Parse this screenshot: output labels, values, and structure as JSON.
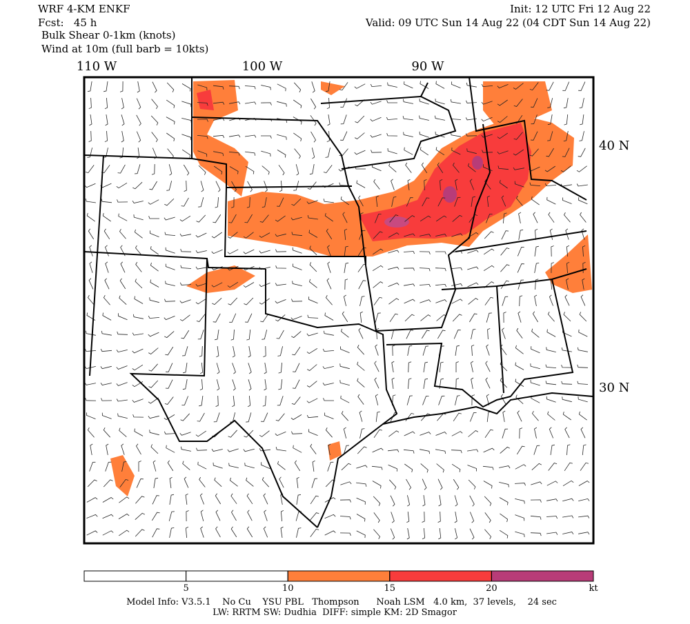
{
  "header": {
    "model": "WRF 4-KM ENKF",
    "forecast": "Fcst:   45 h",
    "field": "Bulk Shear 0-1km (knots)",
    "wind": "Wind at 10m (full barb = 10kts)",
    "init": "Init: 12 UTC Fri 12 Aug 22",
    "valid": "Valid: 09 UTC Sun 14 Aug 22 (04 CDT Sun 14 Aug 22)"
  },
  "map": {
    "lon_labels": [
      "110 W",
      "100 W",
      "90 W"
    ],
    "lat_labels": [
      "40 N",
      "30 N"
    ]
  },
  "colorbar": {
    "range": [
      0,
      25
    ],
    "ticks": [
      5,
      10,
      15,
      20
    ],
    "unit": "kt",
    "colors": [
      "#ffffff",
      "#ffffff",
      "#ff7f3a",
      "#f83c3c",
      "#b83c78"
    ]
  },
  "footer": {
    "line1": "Model Info: V3.5.1    No Cu    YSU PBL   Thompson      Noah LSM   4.0 km,  37 levels,    24 sec",
    "line2": "LW: RRTM SW: Dudhia  DIFF: simple KM: 2D Smagor"
  }
}
